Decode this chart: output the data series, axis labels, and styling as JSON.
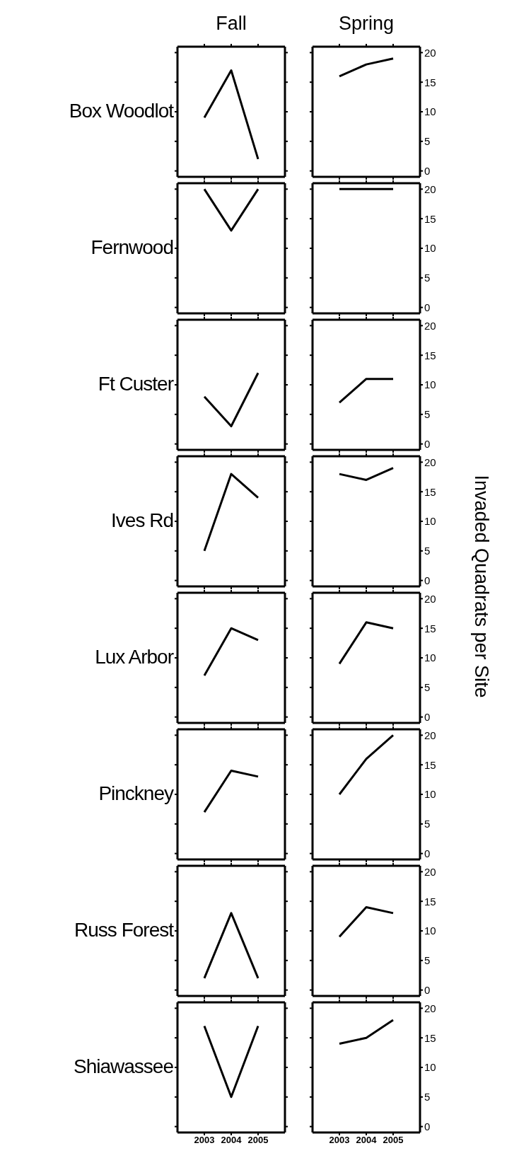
{
  "chart_data": [
    {
      "type": "line",
      "title": "Fall",
      "ylabel": "Box Woodlot",
      "x": [
        2003,
        2004,
        2005
      ],
      "series": [
        {
          "color": "#000000",
          "values": [
            9,
            17,
            2
          ]
        }
      ],
      "xlim": [
        2002,
        2006
      ],
      "ylim": [
        -1,
        21
      ],
      "xticks": [
        2003,
        2004,
        2005
      ],
      "yticks": [
        0,
        5,
        10,
        15,
        20
      ],
      "tick_labels": false
    },
    {
      "type": "line",
      "title": "Spring",
      "x": [
        2003,
        2004,
        2005
      ],
      "series": [
        {
          "color": "#000000",
          "values": [
            16,
            18,
            19
          ]
        }
      ],
      "xlim": [
        2002,
        2006
      ],
      "ylim": [
        -1,
        21
      ],
      "xticks": [
        2003,
        2004,
        2005
      ],
      "yticks": [
        0,
        5,
        10,
        15,
        20
      ],
      "tick_labels": "y"
    },
    {
      "type": "line",
      "ylabel": "Fernwood",
      "x": [
        2003,
        2004,
        2005
      ],
      "series": [
        {
          "color": "#000000",
          "values": [
            20,
            13,
            20
          ]
        }
      ],
      "xlim": [
        2002,
        2006
      ],
      "ylim": [
        -1,
        21
      ],
      "xticks": [
        2003,
        2004,
        2005
      ],
      "yticks": [
        0,
        5,
        10,
        15,
        20
      ],
      "tick_labels": false
    },
    {
      "type": "line",
      "x": [
        2003,
        2004,
        2005
      ],
      "series": [
        {
          "color": "#000000",
          "values": [
            20,
            20,
            20
          ]
        }
      ],
      "xlim": [
        2002,
        2006
      ],
      "ylim": [
        -1,
        21
      ],
      "xticks": [
        2003,
        2004,
        2005
      ],
      "yticks": [
        0,
        5,
        10,
        15,
        20
      ],
      "tick_labels": "y"
    },
    {
      "type": "line",
      "ylabel": "Ft Custer",
      "x": [
        2003,
        2004,
        2005
      ],
      "series": [
        {
          "color": "#000000",
          "values": [
            8,
            3,
            12
          ]
        }
      ],
      "xlim": [
        2002,
        2006
      ],
      "ylim": [
        -1,
        21
      ],
      "xticks": [
        2003,
        2004,
        2005
      ],
      "yticks": [
        0,
        5,
        10,
        15,
        20
      ],
      "tick_labels": false
    },
    {
      "type": "line",
      "x": [
        2003,
        2004,
        2005
      ],
      "series": [
        {
          "color": "#000000",
          "values": [
            7,
            11,
            11
          ]
        }
      ],
      "xlim": [
        2002,
        2006
      ],
      "ylim": [
        -1,
        21
      ],
      "xticks": [
        2003,
        2004,
        2005
      ],
      "yticks": [
        0,
        5,
        10,
        15,
        20
      ],
      "tick_labels": "y"
    },
    {
      "type": "line",
      "ylabel": "Ives Rd",
      "x": [
        2003,
        2004,
        2005
      ],
      "series": [
        {
          "color": "#000000",
          "values": [
            5,
            18,
            14
          ]
        }
      ],
      "xlim": [
        2002,
        2006
      ],
      "ylim": [
        -1,
        21
      ],
      "xticks": [
        2003,
        2004,
        2005
      ],
      "yticks": [
        0,
        5,
        10,
        15,
        20
      ],
      "tick_labels": false
    },
    {
      "type": "line",
      "ylabel": "Invaded Quadrats per Site",
      "x": [
        2003,
        2004,
        2005
      ],
      "series": [
        {
          "color": "#000000",
          "values": [
            18,
            17,
            19
          ]
        }
      ],
      "xlim": [
        2002,
        2006
      ],
      "ylim": [
        -1,
        21
      ],
      "xticks": [
        2003,
        2004,
        2005
      ],
      "yticks": [
        0,
        5,
        10,
        15,
        20
      ],
      "tick_labels": "y"
    },
    {
      "type": "line",
      "ylabel": "Lux Arbor",
      "x": [
        2003,
        2004,
        2005
      ],
      "series": [
        {
          "color": "#000000",
          "values": [
            7,
            15,
            13
          ]
        }
      ],
      "xlim": [
        2002,
        2006
      ],
      "ylim": [
        -1,
        21
      ],
      "xticks": [
        2003,
        2004,
        2005
      ],
      "yticks": [
        0,
        5,
        10,
        15,
        20
      ],
      "tick_labels": false
    },
    {
      "type": "line",
      "x": [
        2003,
        2004,
        2005
      ],
      "series": [
        {
          "color": "#000000",
          "values": [
            9,
            16,
            15
          ]
        }
      ],
      "xlim": [
        2002,
        2006
      ],
      "ylim": [
        -1,
        21
      ],
      "xticks": [
        2003,
        2004,
        2005
      ],
      "yticks": [
        0,
        5,
        10,
        15,
        20
      ],
      "tick_labels": "y"
    },
    {
      "type": "line",
      "ylabel": "Pinckney",
      "x": [
        2003,
        2004,
        2005
      ],
      "series": [
        {
          "color": "#000000",
          "values": [
            7,
            14,
            13
          ]
        }
      ],
      "xlim": [
        2002,
        2006
      ],
      "ylim": [
        -1,
        21
      ],
      "xticks": [
        2003,
        2004,
        2005
      ],
      "yticks": [
        0,
        5,
        10,
        15,
        20
      ],
      "tick_labels": false
    },
    {
      "type": "line",
      "x": [
        2003,
        2004,
        2005
      ],
      "series": [
        {
          "color": "#000000",
          "values": [
            10,
            16,
            20
          ]
        }
      ],
      "xlim": [
        2002,
        2006
      ],
      "ylim": [
        -1,
        21
      ],
      "xticks": [
        2003,
        2004,
        2005
      ],
      "yticks": [
        0,
        5,
        10,
        15,
        20
      ],
      "tick_labels": "y"
    },
    {
      "type": "line",
      "ylabel": "Russ Forest",
      "x": [
        2003,
        2004,
        2005
      ],
      "series": [
        {
          "color": "#000000",
          "values": [
            2,
            13,
            2
          ]
        }
      ],
      "xlim": [
        2002,
        2006
      ],
      "ylim": [
        -1,
        21
      ],
      "xticks": [
        2003,
        2004,
        2005
      ],
      "yticks": [
        0,
        5,
        10,
        15,
        20
      ],
      "tick_labels": false
    },
    {
      "type": "line",
      "x": [
        2003,
        2004,
        2005
      ],
      "series": [
        {
          "color": "#000000",
          "values": [
            9,
            14,
            13
          ]
        }
      ],
      "xlim": [
        2002,
        2006
      ],
      "ylim": [
        -1,
        21
      ],
      "xticks": [
        2003,
        2004,
        2005
      ],
      "yticks": [
        0,
        5,
        10,
        15,
        20
      ],
      "tick_labels": "y"
    },
    {
      "type": "line",
      "ylabel": "Shiawassee",
      "x": [
        2003,
        2004,
        2005
      ],
      "series": [
        {
          "color": "#000000",
          "values": [
            17,
            5,
            17
          ]
        }
      ],
      "xlim": [
        2002,
        2006
      ],
      "ylim": [
        -1,
        21
      ],
      "xticks": [
        2003,
        2004,
        2005
      ],
      "yticks": [
        0,
        5,
        10,
        15,
        20
      ],
      "tick_labels": "x"
    },
    {
      "type": "line",
      "x": [
        2003,
        2004,
        2005
      ],
      "series": [
        {
          "color": "#000000",
          "values": [
            14,
            15,
            18
          ]
        }
      ],
      "xlim": [
        2002,
        2006
      ],
      "ylim": [
        -1,
        21
      ],
      "xticks": [
        2003,
        2004,
        2005
      ],
      "yticks": [
        0,
        5,
        10,
        15,
        20
      ]
    }
  ]
}
